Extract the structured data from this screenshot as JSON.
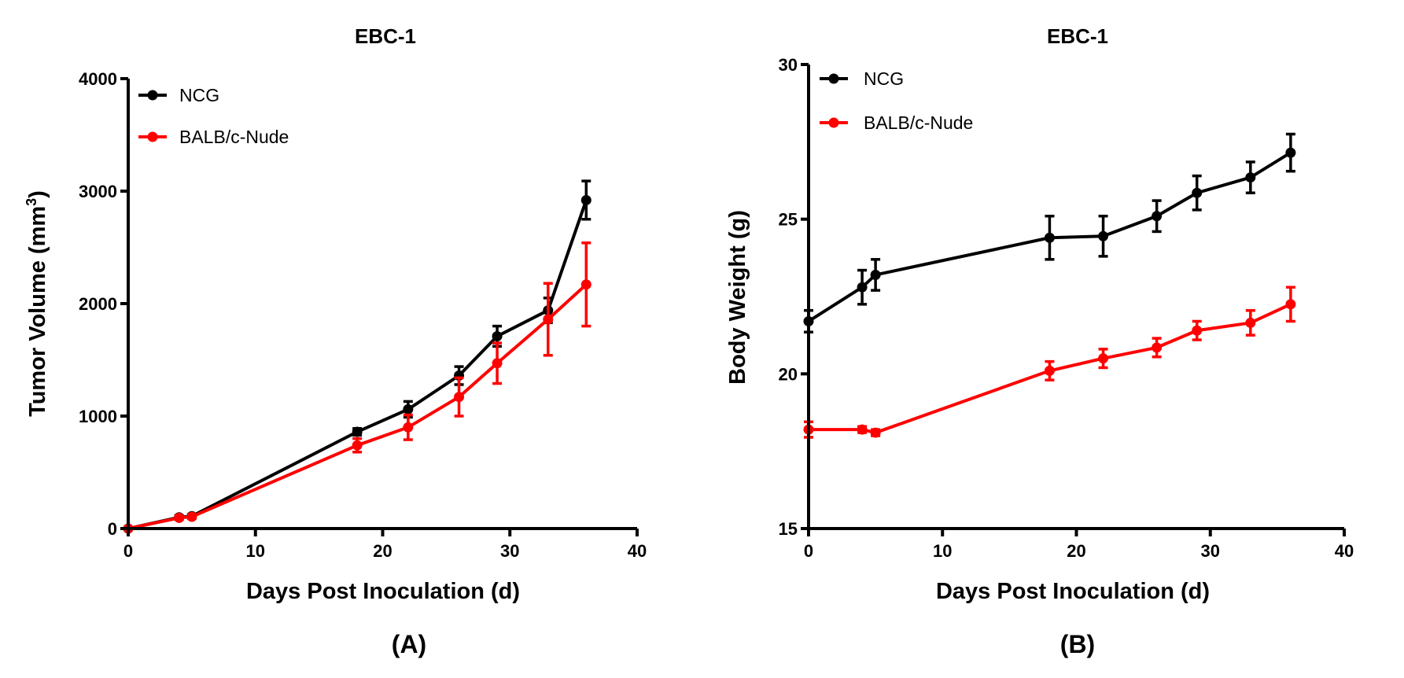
{
  "colors": {
    "NCG": "#000000",
    "BALB/c-Nude": "#ff0000"
  },
  "chart_data": [
    {
      "type": "line",
      "panel": "(A)",
      "title": "EBC-1",
      "xlabel": "Days Post Inoculation (d)",
      "ylabel_main": "Tumor Volume (mm",
      "ylabel_sup": "3",
      "ylabel_end": ")",
      "xlim": [
        0,
        40
      ],
      "ylim": [
        0,
        4000
      ],
      "xticks": [
        0,
        10,
        20,
        30,
        40
      ],
      "yticks": [
        0,
        1000,
        2000,
        3000,
        4000
      ],
      "legend_position": "top-left",
      "grid": false,
      "series": [
        {
          "name": "NCG",
          "color": "#000000",
          "points": [
            {
              "x": 0,
              "y": 0,
              "err": 10
            },
            {
              "x": 4,
              "y": 100,
              "err": 15
            },
            {
              "x": 5,
              "y": 110,
              "err": 15
            },
            {
              "x": 18,
              "y": 860,
              "err": 30
            },
            {
              "x": 22,
              "y": 1060,
              "err": 70
            },
            {
              "x": 26,
              "y": 1360,
              "err": 80
            },
            {
              "x": 29,
              "y": 1710,
              "err": 90
            },
            {
              "x": 33,
              "y": 1940,
              "err": 110
            },
            {
              "x": 36,
              "y": 2920,
              "err": 170
            }
          ]
        },
        {
          "name": "BALB/c-Nude",
          "color": "#ff0000",
          "points": [
            {
              "x": 0,
              "y": 0,
              "err": 10
            },
            {
              "x": 4,
              "y": 95,
              "err": 15
            },
            {
              "x": 5,
              "y": 105,
              "err": 15
            },
            {
              "x": 18,
              "y": 740,
              "err": 60
            },
            {
              "x": 22,
              "y": 900,
              "err": 110
            },
            {
              "x": 26,
              "y": 1170,
              "err": 170
            },
            {
              "x": 29,
              "y": 1470,
              "err": 180
            },
            {
              "x": 33,
              "y": 1860,
              "err": 320
            },
            {
              "x": 36,
              "y": 2170,
              "err": 370
            }
          ]
        }
      ]
    },
    {
      "type": "line",
      "panel": "(B)",
      "title": "EBC-1",
      "xlabel": "Days Post Inoculation (d)",
      "ylabel_main": "Body Weight (g)",
      "ylabel_sup": "",
      "ylabel_end": "",
      "xlim": [
        0,
        40
      ],
      "ylim": [
        15,
        30
      ],
      "xticks": [
        0,
        10,
        20,
        30,
        40
      ],
      "yticks": [
        15,
        20,
        25,
        30
      ],
      "legend_position": "top-left",
      "grid": false,
      "series": [
        {
          "name": "NCG",
          "color": "#000000",
          "points": [
            {
              "x": 0,
              "y": 21.7,
              "err": 0.35
            },
            {
              "x": 4,
              "y": 22.8,
              "err": 0.55
            },
            {
              "x": 5,
              "y": 23.2,
              "err": 0.5
            },
            {
              "x": 18,
              "y": 24.4,
              "err": 0.7
            },
            {
              "x": 22,
              "y": 24.45,
              "err": 0.65
            },
            {
              "x": 26,
              "y": 25.1,
              "err": 0.5
            },
            {
              "x": 29,
              "y": 25.85,
              "err": 0.55
            },
            {
              "x": 33,
              "y": 26.35,
              "err": 0.5
            },
            {
              "x": 36,
              "y": 27.15,
              "err": 0.6
            }
          ]
        },
        {
          "name": "BALB/c-Nude",
          "color": "#ff0000",
          "points": [
            {
              "x": 0,
              "y": 18.2,
              "err": 0.25
            },
            {
              "x": 4,
              "y": 18.2,
              "err": 0.1
            },
            {
              "x": 5,
              "y": 18.1,
              "err": 0.1
            },
            {
              "x": 18,
              "y": 20.1,
              "err": 0.3
            },
            {
              "x": 22,
              "y": 20.5,
              "err": 0.3
            },
            {
              "x": 26,
              "y": 20.85,
              "err": 0.3
            },
            {
              "x": 29,
              "y": 21.4,
              "err": 0.3
            },
            {
              "x": 33,
              "y": 21.65,
              "err": 0.4
            },
            {
              "x": 36,
              "y": 22.25,
              "err": 0.55
            }
          ]
        }
      ]
    }
  ]
}
